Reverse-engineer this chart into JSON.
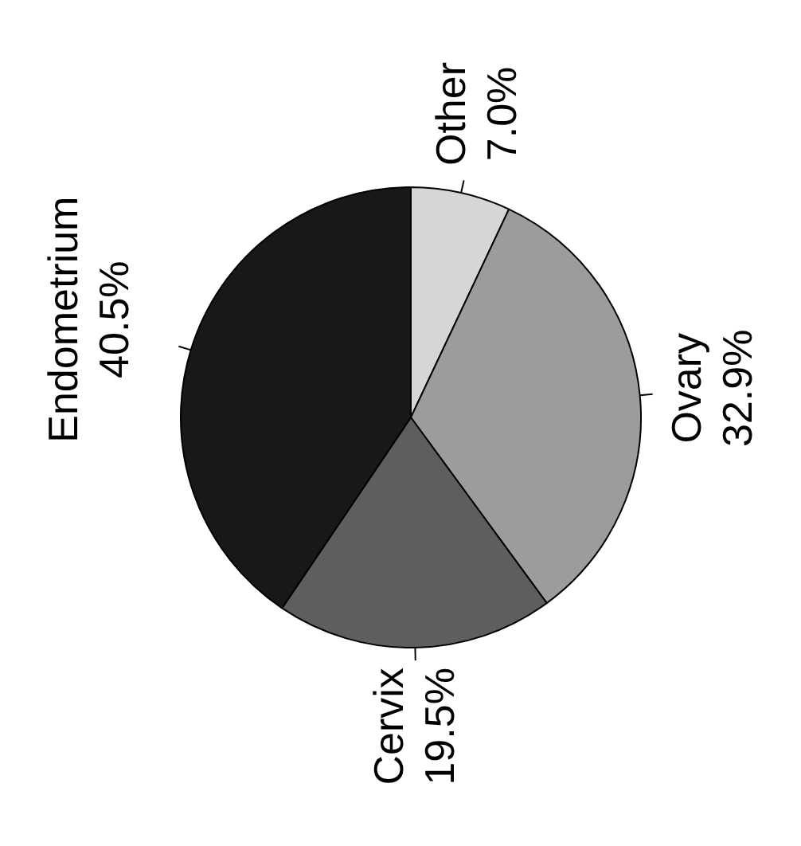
{
  "chart_data": {
    "type": "pie",
    "categories": [
      "Other",
      "Ovary",
      "Cervix",
      "Endometrium"
    ],
    "values": [
      7.0,
      32.9,
      19.5,
      40.5
    ],
    "value_labels": [
      "7.0%",
      "32.9%",
      "19.5%",
      "40.5%"
    ],
    "colors": [
      "#d6d6d6",
      "#9c9c9c",
      "#5e5e5e",
      "#181818"
    ],
    "legend": false
  }
}
